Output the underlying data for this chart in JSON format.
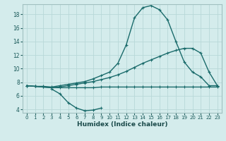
{
  "xlabel": "Humidex (Indice chaleur)",
  "bg_color": "#d4ecec",
  "grid_color": "#b8d8d8",
  "line_color": "#1a6b6b",
  "xlim": [
    -0.5,
    23.5
  ],
  "ylim": [
    3.5,
    19.5
  ],
  "xticks": [
    0,
    1,
    2,
    3,
    4,
    5,
    6,
    7,
    8,
    9,
    10,
    11,
    12,
    13,
    14,
    15,
    16,
    17,
    18,
    19,
    20,
    21,
    22,
    23
  ],
  "yticks": [
    4,
    6,
    8,
    10,
    12,
    14,
    16,
    18
  ],
  "line1_x": [
    0,
    1,
    2,
    3,
    4,
    5,
    6,
    7,
    8,
    9,
    10,
    11,
    12,
    13,
    14,
    15,
    16,
    17,
    18,
    19,
    20,
    21,
    22,
    23
  ],
  "line1_y": [
    7.5,
    7.4,
    7.4,
    7.3,
    7.5,
    7.7,
    7.9,
    8.1,
    8.5,
    9.0,
    9.5,
    10.8,
    13.5,
    17.5,
    19.0,
    19.3,
    18.7,
    17.2,
    14.0,
    11.0,
    9.5,
    8.8,
    7.5,
    7.5
  ],
  "line2_x": [
    0,
    1,
    2,
    3,
    4,
    5,
    6,
    7,
    8,
    9,
    10,
    11,
    12,
    13,
    14,
    15,
    16,
    17,
    18,
    19,
    20,
    21,
    22,
    23
  ],
  "line2_y": [
    7.5,
    7.4,
    7.3,
    7.2,
    7.3,
    7.5,
    7.7,
    7.9,
    8.1,
    8.4,
    8.7,
    9.1,
    9.6,
    10.2,
    10.8,
    11.3,
    11.8,
    12.3,
    12.7,
    13.0,
    13.0,
    12.3,
    9.5,
    7.5
  ],
  "line3_x": [
    0,
    1,
    2,
    3,
    4,
    5,
    6,
    7,
    8,
    9,
    10,
    11,
    12,
    13,
    14,
    15,
    16,
    17,
    18,
    19,
    20,
    21,
    22,
    23
  ],
  "line3_y": [
    7.5,
    7.4,
    7.3,
    7.2,
    7.2,
    7.2,
    7.2,
    7.2,
    7.2,
    7.3,
    7.3,
    7.3,
    7.3,
    7.3,
    7.3,
    7.3,
    7.3,
    7.3,
    7.3,
    7.3,
    7.3,
    7.3,
    7.3,
    7.3
  ],
  "line4_x": [
    3,
    4,
    5,
    6,
    7,
    8,
    9
  ],
  "line4_y": [
    7.0,
    6.3,
    5.0,
    4.2,
    3.8,
    3.9,
    4.2
  ],
  "marker_size": 3,
  "linewidth": 1.0
}
